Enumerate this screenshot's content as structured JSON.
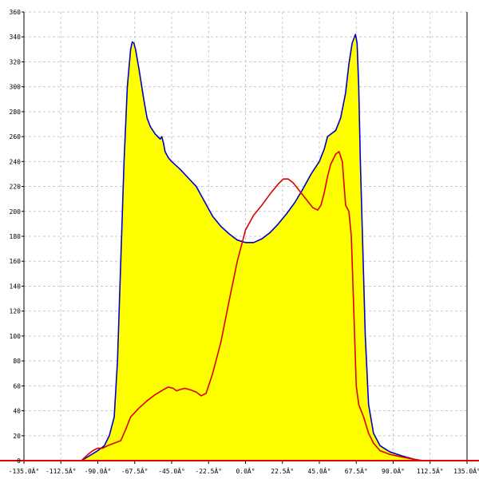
{
  "chart_data": {
    "type": "area",
    "title": "",
    "xlabel": "",
    "ylabel": "",
    "xlim": [
      -135,
      135
    ],
    "ylim": [
      0,
      360
    ],
    "grid": true,
    "colors": {
      "fill": "#ffff00",
      "envelope": "#0000cc",
      "inner": "#dd0000",
      "axis": "#000000",
      "baseline": "#dd0000",
      "grid": "#c8c8c8"
    },
    "x_ticks": [
      -135,
      -112.5,
      -90,
      -67.5,
      -45,
      -22.5,
      0,
      22.5,
      45,
      67.5,
      90,
      112.5,
      135
    ],
    "x_tick_labels": [
      "-135.0Â°",
      "-112.5Â°",
      "-90.0Â°",
      "-67.5Â°",
      "-45.0Â°",
      "-22.5Â°",
      "0.0Â°",
      "22.5Â°",
      "45.0Â°",
      "67.5Â°",
      "90.0Â°",
      "112.5Â°",
      "135.0Â°"
    ],
    "y_ticks": [
      0,
      20,
      40,
      60,
      80,
      100,
      120,
      140,
      160,
      180,
      200,
      220,
      240,
      260,
      280,
      300,
      320,
      340,
      360
    ],
    "y_tick_labels": [
      "0",
      "20",
      "40",
      "60",
      "80",
      "100",
      "120",
      "140",
      "160",
      "180",
      "200",
      "220",
      "240",
      "260",
      "280",
      "300",
      "320",
      "340",
      "360"
    ],
    "series": [
      {
        "points": [
          [
            -100,
            0
          ],
          [
            -95,
            4
          ],
          [
            -90,
            8
          ],
          [
            -86,
            12
          ],
          [
            -83,
            20
          ],
          [
            -80,
            35
          ],
          [
            -78,
            80
          ],
          [
            -76,
            160
          ],
          [
            -74,
            240
          ],
          [
            -72,
            300
          ],
          [
            -70,
            330
          ],
          [
            -69,
            336
          ],
          [
            -68,
            335
          ],
          [
            -67,
            330
          ],
          [
            -65,
            315
          ],
          [
            -62,
            290
          ],
          [
            -60,
            275
          ],
          [
            -58,
            268
          ],
          [
            -55,
            262
          ],
          [
            -52,
            258
          ],
          [
            -51,
            260
          ],
          [
            -50,
            255
          ],
          [
            -49,
            248
          ],
          [
            -47,
            243
          ],
          [
            -45,
            240
          ],
          [
            -40,
            234
          ],
          [
            -35,
            227
          ],
          [
            -30,
            220
          ],
          [
            -25,
            208
          ],
          [
            -20,
            196
          ],
          [
            -15,
            188
          ],
          [
            -10,
            182
          ],
          [
            -5,
            177
          ],
          [
            0,
            175
          ],
          [
            5,
            175
          ],
          [
            10,
            178
          ],
          [
            15,
            183
          ],
          [
            20,
            190
          ],
          [
            25,
            198
          ],
          [
            30,
            207
          ],
          [
            35,
            218
          ],
          [
            40,
            230
          ],
          [
            45,
            240
          ],
          [
            48,
            250
          ],
          [
            50,
            260
          ],
          [
            52,
            262
          ],
          [
            55,
            265
          ],
          [
            58,
            275
          ],
          [
            61,
            295
          ],
          [
            63,
            318
          ],
          [
            65,
            335
          ],
          [
            67,
            342
          ],
          [
            68,
            335
          ],
          [
            69,
            300
          ],
          [
            70,
            240
          ],
          [
            71.5,
            170
          ],
          [
            73,
            100
          ],
          [
            75,
            45
          ],
          [
            78,
            22
          ],
          [
            82,
            12
          ],
          [
            88,
            7
          ],
          [
            95,
            4
          ],
          [
            103,
            1
          ],
          [
            108,
            0
          ]
        ]
      },
      {
        "points": [
          [
            -100,
            0
          ],
          [
            -96,
            5
          ],
          [
            -93,
            8
          ],
          [
            -90,
            10
          ],
          [
            -87,
            10
          ],
          [
            -84,
            12
          ],
          [
            -80,
            14
          ],
          [
            -76,
            16
          ],
          [
            -73,
            25
          ],
          [
            -70,
            35
          ],
          [
            -65,
            42
          ],
          [
            -60,
            48
          ],
          [
            -55,
            53
          ],
          [
            -50,
            57
          ],
          [
            -47,
            59
          ],
          [
            -44,
            58
          ],
          [
            -42,
            56
          ],
          [
            -40,
            57
          ],
          [
            -37,
            58
          ],
          [
            -34,
            57
          ],
          [
            -30,
            55
          ],
          [
            -27,
            52
          ],
          [
            -24,
            54
          ],
          [
            -20,
            70
          ],
          [
            -15,
            95
          ],
          [
            -10,
            128
          ],
          [
            -5,
            160
          ],
          [
            0,
            185
          ],
          [
            5,
            197
          ],
          [
            10,
            205
          ],
          [
            15,
            214
          ],
          [
            20,
            222
          ],
          [
            23,
            226
          ],
          [
            26,
            226
          ],
          [
            29,
            223
          ],
          [
            32,
            218
          ],
          [
            35,
            213
          ],
          [
            38,
            208
          ],
          [
            41,
            203
          ],
          [
            44,
            201
          ],
          [
            46,
            205
          ],
          [
            48,
            215
          ],
          [
            50,
            228
          ],
          [
            52,
            238
          ],
          [
            55,
            246
          ],
          [
            57,
            248
          ],
          [
            59,
            240
          ],
          [
            61,
            205
          ],
          [
            63,
            200
          ],
          [
            64.5,
            180
          ],
          [
            66,
            120
          ],
          [
            67.5,
            60
          ],
          [
            69,
            45
          ],
          [
            72,
            35
          ],
          [
            75,
            22
          ],
          [
            78,
            14
          ],
          [
            82,
            8
          ],
          [
            88,
            5
          ],
          [
            95,
            3
          ],
          [
            103,
            1
          ],
          [
            108,
            0
          ]
        ]
      }
    ]
  }
}
